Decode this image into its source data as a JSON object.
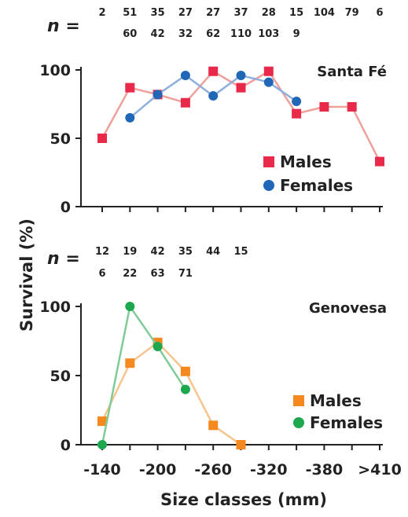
{
  "chart_data": {
    "type": "line",
    "ylabel": "Survival (%)",
    "xlabel": "Size classes (mm)",
    "x_tick_labels": [
      "-140",
      "-200",
      "-260",
      "-320",
      "-380",
      ">410"
    ],
    "panels": [
      {
        "title": "Santa Fé",
        "ylim": [
          0,
          100
        ],
        "y_ticks": [
          "0",
          "50",
          "100"
        ],
        "n_prefix": "n =",
        "n_males": [
          "2",
          "51",
          "35",
          "27",
          "27",
          "37",
          "28",
          "15",
          "104",
          "79",
          "6"
        ],
        "n_females": [
          "",
          "60",
          "42",
          "32",
          "62",
          "110",
          "103",
          "9",
          "",
          "",
          ""
        ],
        "series": [
          {
            "name": "Males",
            "color": "#e8294a",
            "line_color": "#f0a09a",
            "marker": "square",
            "values": [
              50,
              87,
              82,
              76,
              99,
              87,
              99,
              68,
              73,
              73,
              33
            ]
          },
          {
            "name": "Females",
            "color": "#2067b8",
            "line_color": "#8fb0de",
            "marker": "circle",
            "values": [
              null,
              65,
              82,
              96,
              81,
              96,
              91,
              77,
              null,
              null,
              null
            ]
          }
        ]
      },
      {
        "title": "Genovesa",
        "ylim": [
          0,
          100
        ],
        "y_ticks": [
          "0",
          "50",
          "100"
        ],
        "n_prefix": "n =",
        "n_males": [
          "12",
          "19",
          "42",
          "35",
          "44",
          "15"
        ],
        "n_females": [
          "6",
          "22",
          "63",
          "71",
          "",
          ""
        ],
        "series": [
          {
            "name": "Males",
            "color": "#f5891f",
            "line_color": "#f7c48e",
            "marker": "square",
            "values": [
              17,
              59,
              74,
              53,
              14,
              0,
              null,
              null,
              null,
              null,
              null
            ]
          },
          {
            "name": "Females",
            "color": "#1da84f",
            "line_color": "#7fcc99",
            "marker": "circle",
            "values": [
              0,
              100,
              71,
              40,
              null,
              null,
              null,
              null,
              null,
              null,
              null
            ]
          }
        ]
      }
    ]
  }
}
